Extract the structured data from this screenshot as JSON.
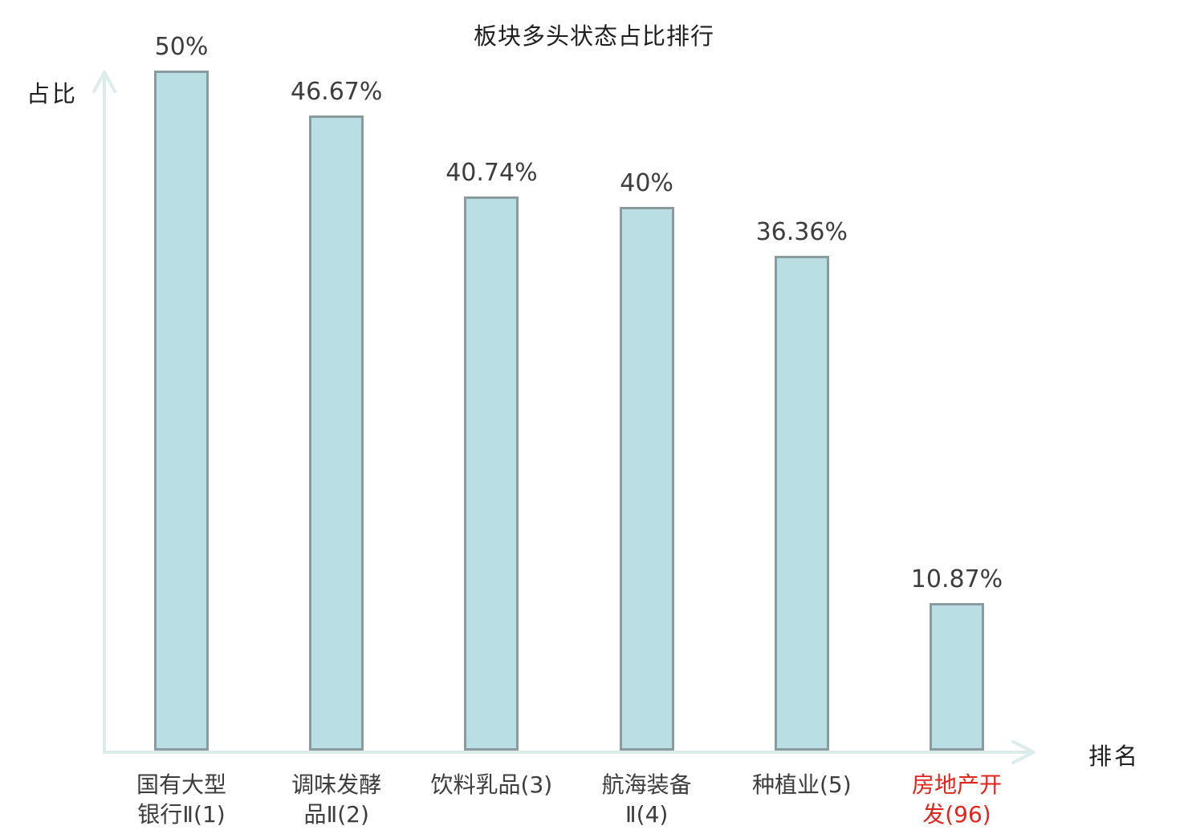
{
  "chart_data": {
    "type": "bar",
    "title": "板块多头状态占比排行",
    "xlabel": "排名",
    "ylabel": "占比",
    "categories": [
      "国有大型银行Ⅱ(1)",
      "调味发酵品Ⅱ(2)",
      "饮料乳品(3)",
      "航海装备Ⅱ(4)",
      "种植业(5)",
      "房地产开发(96)"
    ],
    "category_lines": [
      "国有大型\n银行Ⅱ(1)",
      "调味发酵\n品Ⅱ(2)",
      "饮料乳品(3)",
      "航海装备\nⅡ(4)",
      "种植业(5)",
      "房地产开\n发(96)"
    ],
    "values": [
      50,
      46.67,
      40.74,
      40,
      36.36,
      10.87
    ],
    "value_labels": [
      "50%",
      "46.67%",
      "40.74%",
      "40%",
      "36.36%",
      "10.87%"
    ],
    "category_colors": [
      "#3d3d3d",
      "#3d3d3d",
      "#3d3d3d",
      "#3d3d3d",
      "#3d3d3d",
      "#e0251c"
    ],
    "ylim": [
      0,
      50
    ],
    "grid": false,
    "legend": false,
    "colors": {
      "bar_fill": "#b9dee3",
      "bar_border": "#8a9b9e",
      "axis": "#dcecea",
      "label": "#3d3d3d",
      "highlight": "#e0251c"
    }
  }
}
